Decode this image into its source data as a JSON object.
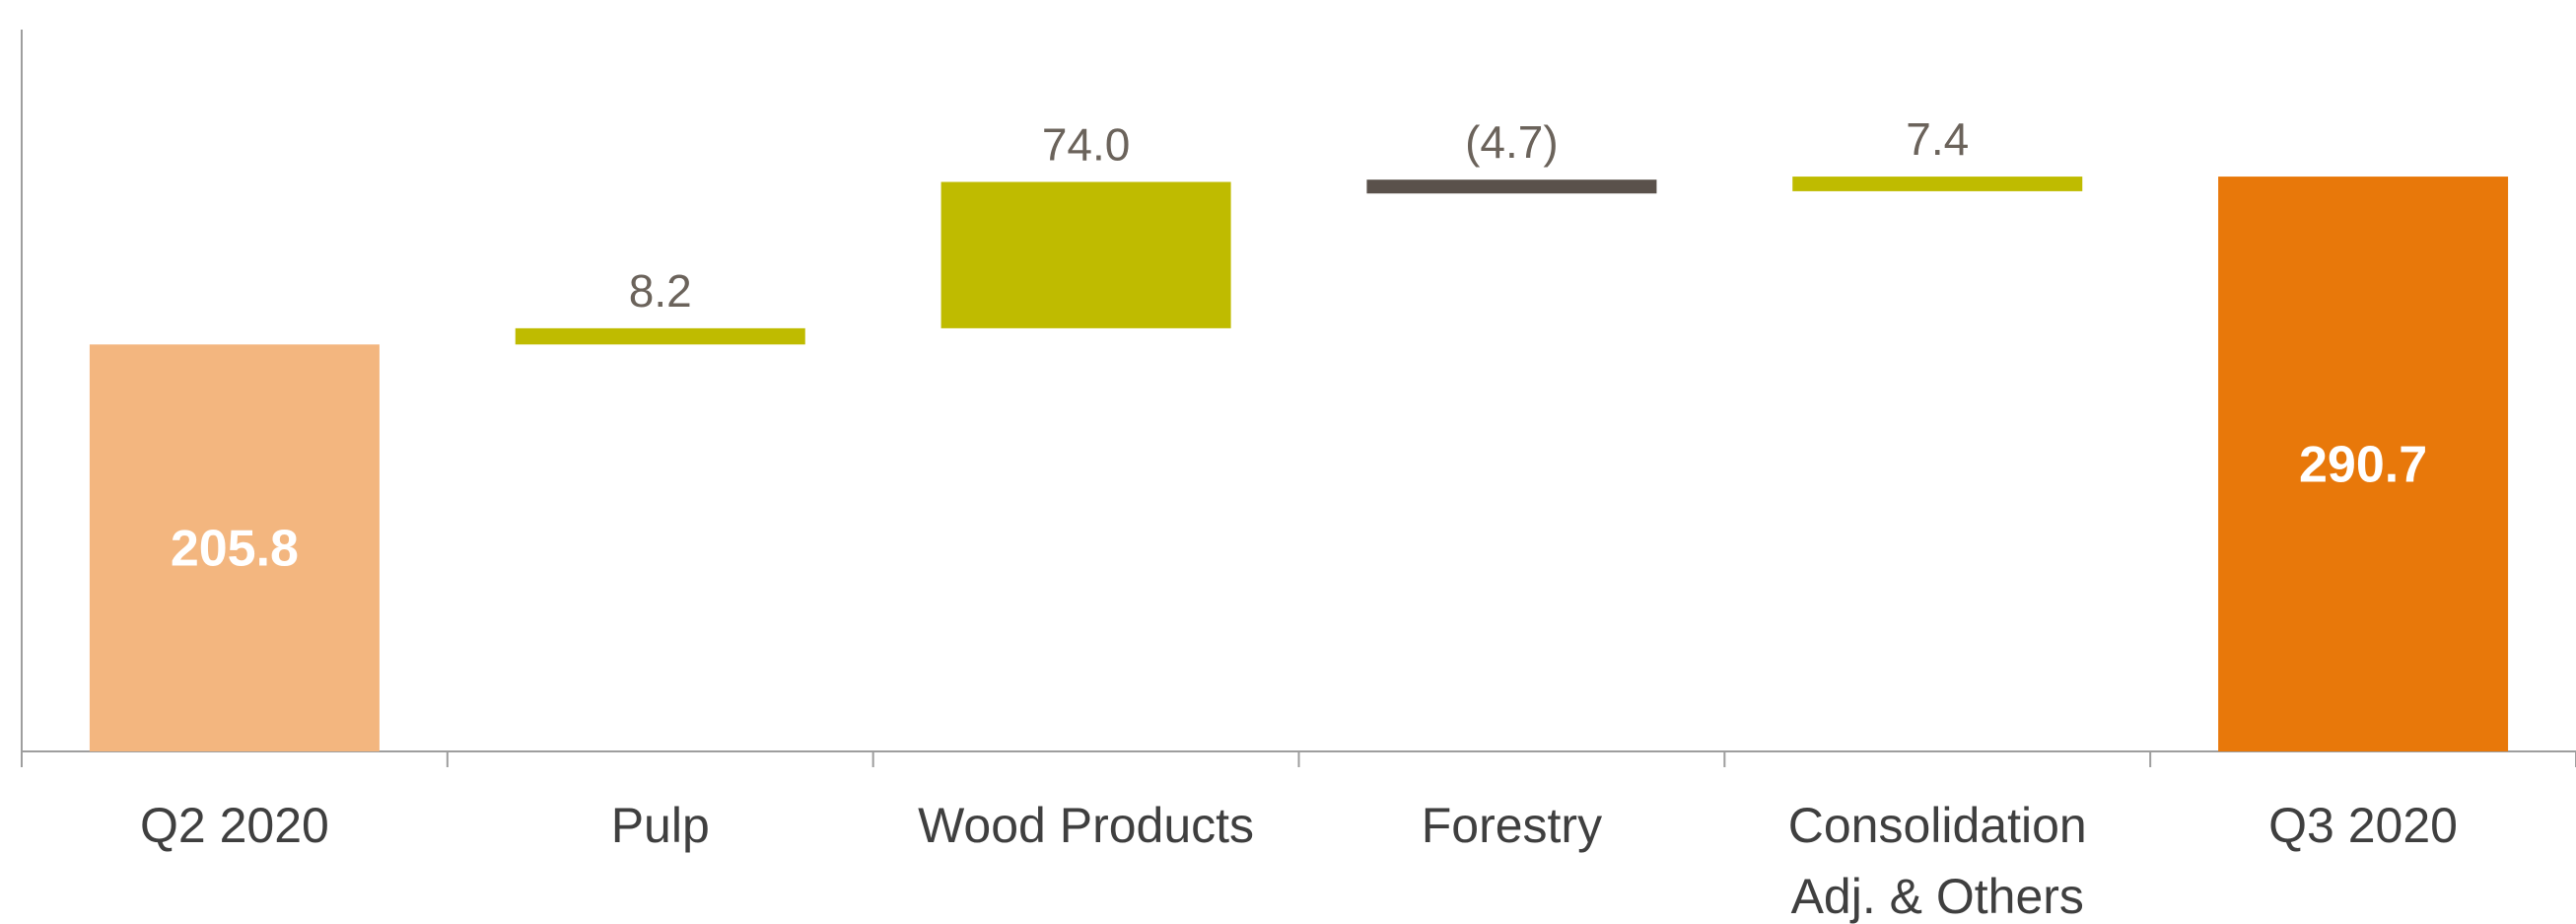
{
  "chart_data": {
    "type": "waterfall",
    "title": "",
    "xlabel": "",
    "ylabel": "",
    "categories": [
      [
        "Q2 2020"
      ],
      [
        "Pulp"
      ],
      [
        "Wood Products"
      ],
      [
        "Forestry"
      ],
      [
        "Consolidation",
        "Adj. & Others"
      ],
      [
        "Q3 2020"
      ]
    ],
    "steps": [
      {
        "kind": "total",
        "value": 205.8,
        "label": "205.8",
        "color": "#f3b67f"
      },
      {
        "kind": "delta",
        "value": 8.2,
        "label": "8.2",
        "color": "#bfbb00"
      },
      {
        "kind": "delta",
        "value": 74.0,
        "label": "74.0",
        "color": "#bfbb00"
      },
      {
        "kind": "delta",
        "value": -4.7,
        "label": "(4.7)",
        "color": "#5a514b"
      },
      {
        "kind": "delta",
        "value": 7.4,
        "label": "7.4",
        "color": "#bfbb00"
      },
      {
        "kind": "total",
        "value": 290.7,
        "label": "290.7",
        "color": "#e8780a"
      }
    ],
    "ylim": [
      0,
      380
    ],
    "grid": false,
    "legend": "none"
  }
}
